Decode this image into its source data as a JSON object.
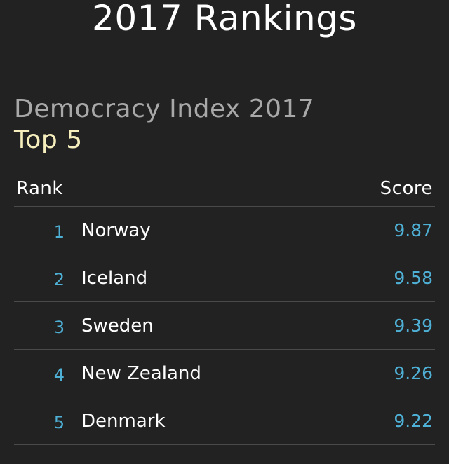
{
  "header": {
    "title": "2017 Rankings"
  },
  "index": {
    "title": "Democracy Index 2017",
    "subtitle": "Top 5"
  },
  "table": {
    "columns": {
      "rank": "Rank",
      "score": "Score"
    },
    "rows": [
      {
        "rank": "1",
        "country": "Norway",
        "score": "9.87"
      },
      {
        "rank": "2",
        "country": "Iceland",
        "score": "9.58"
      },
      {
        "rank": "3",
        "country": "Sweden",
        "score": "9.39"
      },
      {
        "rank": "4",
        "country": "New Zealand",
        "score": "9.26"
      },
      {
        "rank": "5",
        "country": "Denmark",
        "score": "9.22"
      }
    ]
  },
  "colors": {
    "background": "#222222",
    "accent": "#4fb0d6",
    "subtitle": "#f6efbd",
    "muted": "#a8a8a8"
  }
}
